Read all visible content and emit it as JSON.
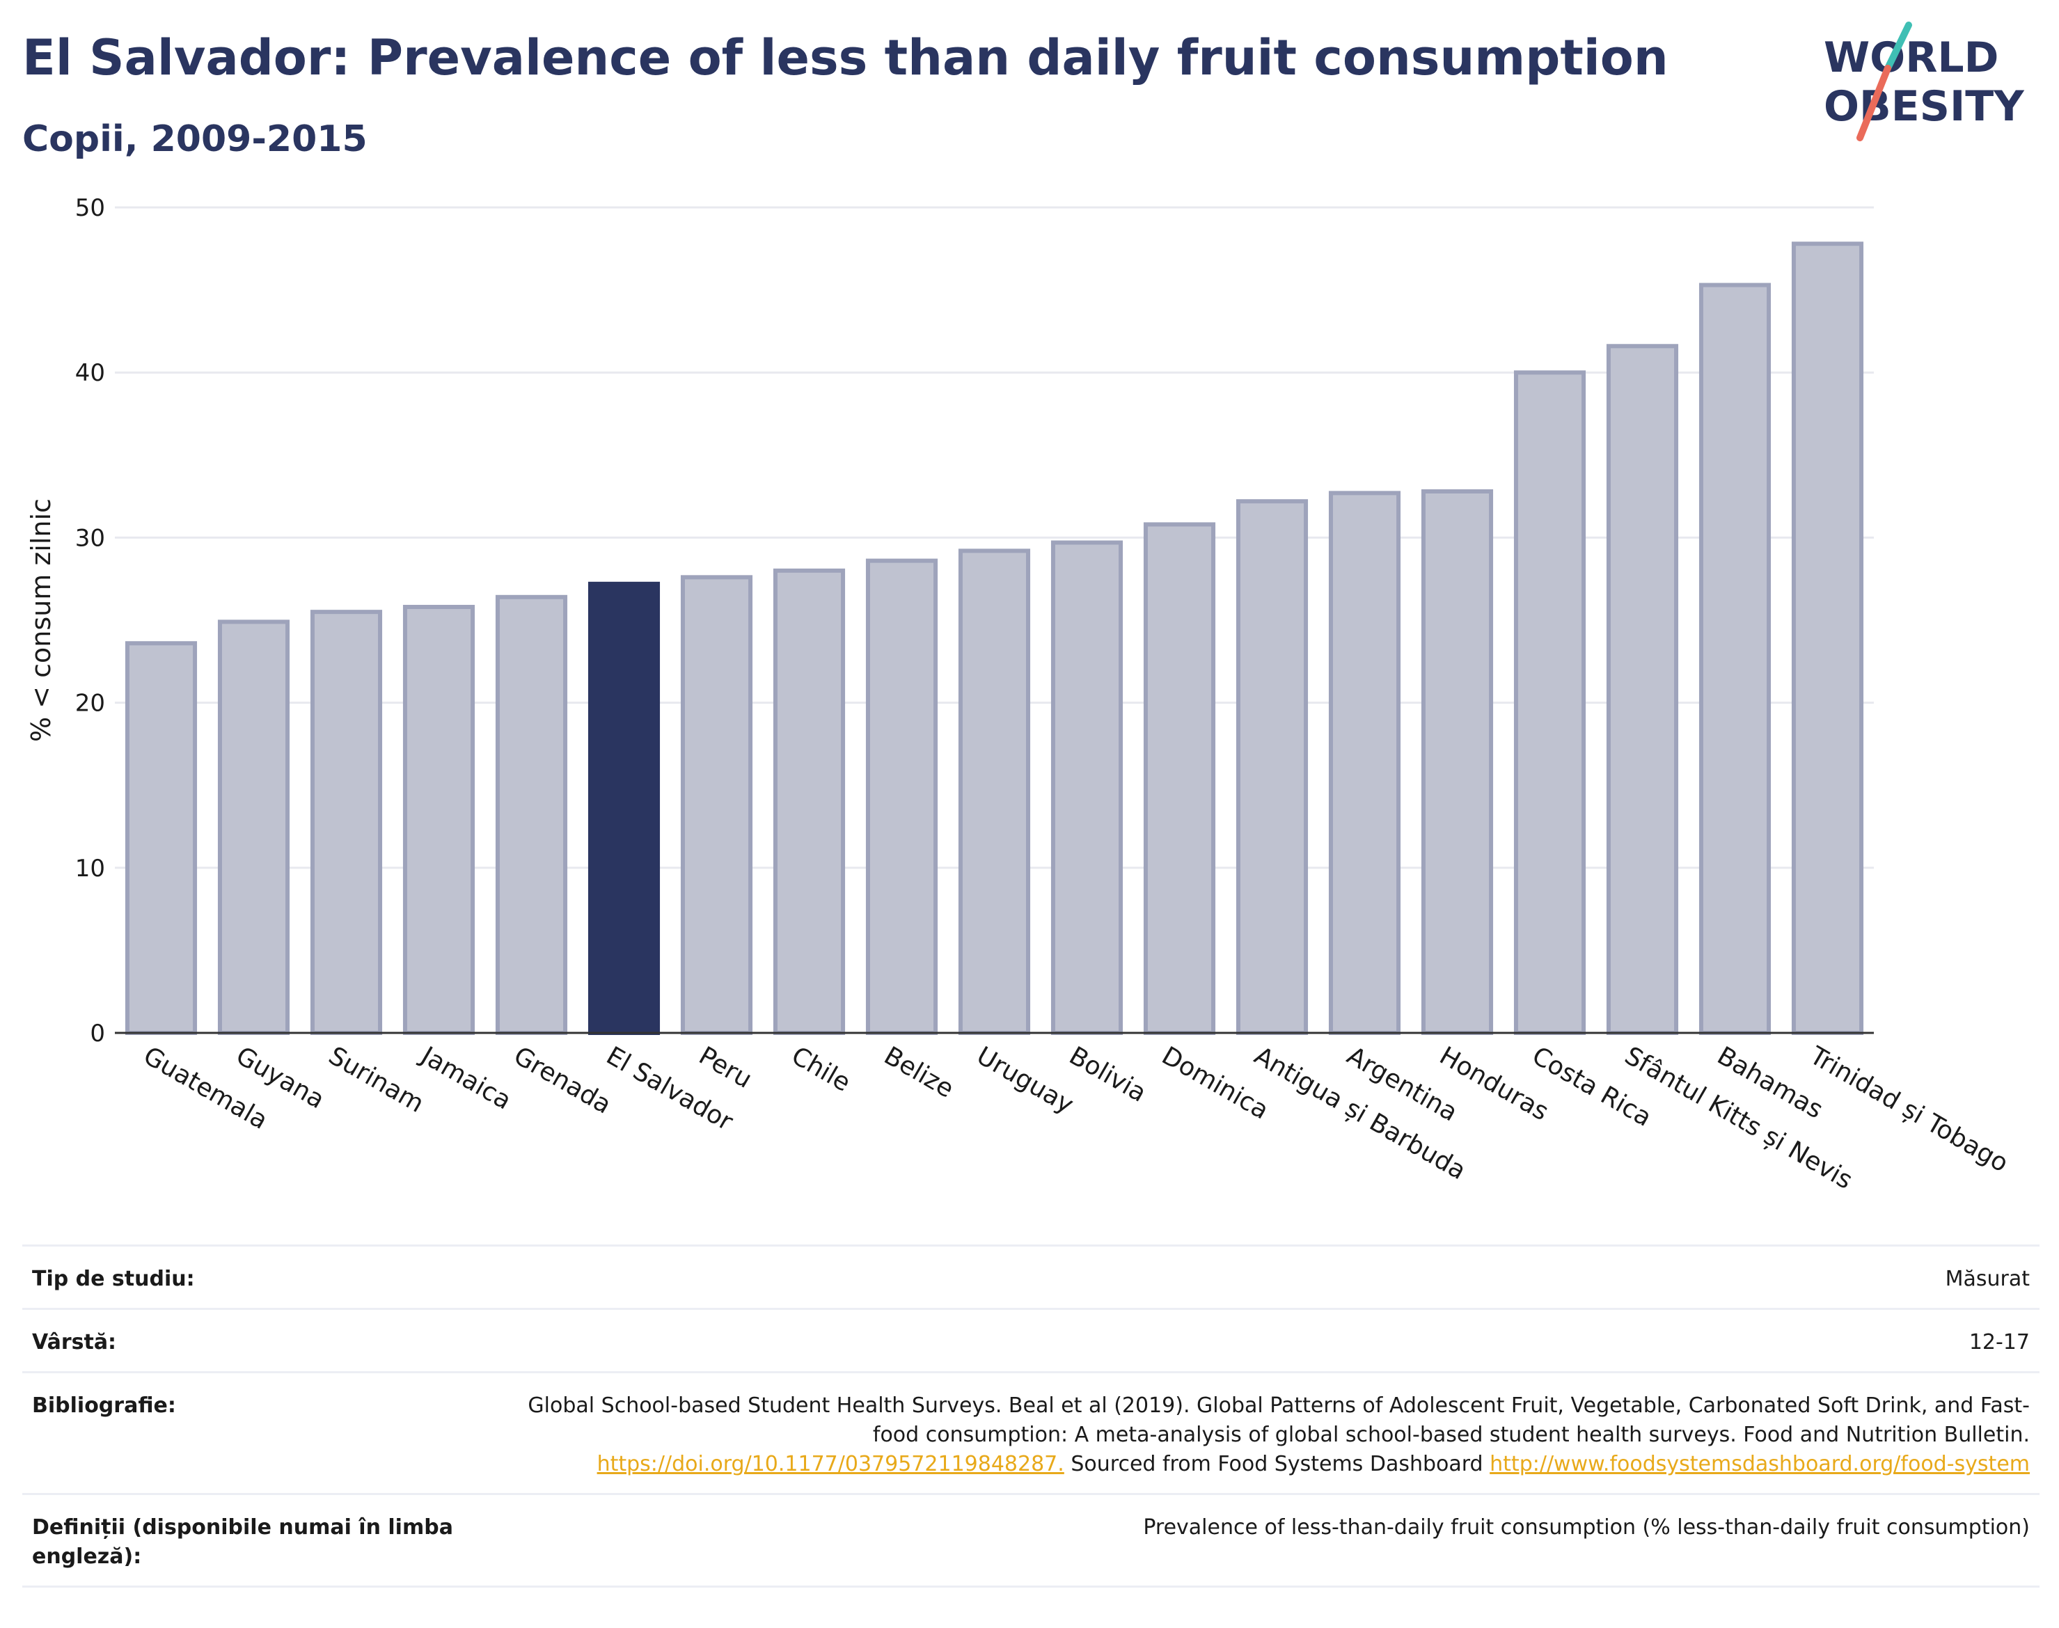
{
  "header": {
    "title": "El Salvador: Prevalence of less than daily fruit consumption",
    "subtitle": "Copii, 2009-2015"
  },
  "logo": {
    "line1": "WORLD",
    "line2": "OBESITY",
    "colors": {
      "text": "#2a3560",
      "slash_teal": "#3fbfb4",
      "slash_coral": "#ea6b5a"
    }
  },
  "chart_data": {
    "type": "bar",
    "ylabel": "% < consum zilnic",
    "xlabel": "",
    "ylim": [
      0,
      50
    ],
    "yticks": [
      0,
      10,
      20,
      30,
      40,
      50
    ],
    "grid": true,
    "highlight": "El Salvador",
    "colors": {
      "bar": "#bfc2d0",
      "bar_edge": "#9ea3bb",
      "highlight": "#2a3560"
    },
    "categories": [
      "Guatemala",
      "Guyana",
      "Surinam",
      "Jamaica",
      "Grenada",
      "El Salvador",
      "Peru",
      "Chile",
      "Belize",
      "Uruguay",
      "Bolivia",
      "Dominica",
      "Antigua și Barbuda",
      "Argentina",
      "Honduras",
      "Costa Rica",
      "Sfântul Kitts și Nevis",
      "Bahamas",
      "Trinidad și Tobago"
    ],
    "values": [
      23.6,
      24.9,
      25.5,
      25.8,
      26.4,
      27.2,
      27.6,
      28.0,
      28.6,
      29.2,
      29.7,
      30.8,
      32.2,
      32.7,
      32.8,
      40.0,
      41.6,
      45.3,
      47.8
    ]
  },
  "meta": {
    "study_type_label": "Tip de studiu:",
    "study_type_value": "Măsurat",
    "age_label": "Vârstă:",
    "age_value": "12-17",
    "bib_label": "Bibliografie:",
    "bib_text1": "Global School-based Student Health Surveys. Beal et al (2019). Global Patterns of Adolescent Fruit, Vegetable, Carbonated Soft Drink, and Fast-food consumption: A meta-analysis of global school-based student health surveys. Food and Nutrition Bulletin.",
    "bib_link1": "https://doi.org/10.1177/0379572119848287.",
    "bib_text2": "Sourced from Food Systems Dashboard",
    "bib_link2": "http://www.foodsystemsdashboard.org/food-system",
    "def_label": "Definiții (disponibile numai în limba engleză):",
    "def_value": "Prevalence of less-than-daily fruit consumption (% less-than-daily fruit consumption)"
  }
}
